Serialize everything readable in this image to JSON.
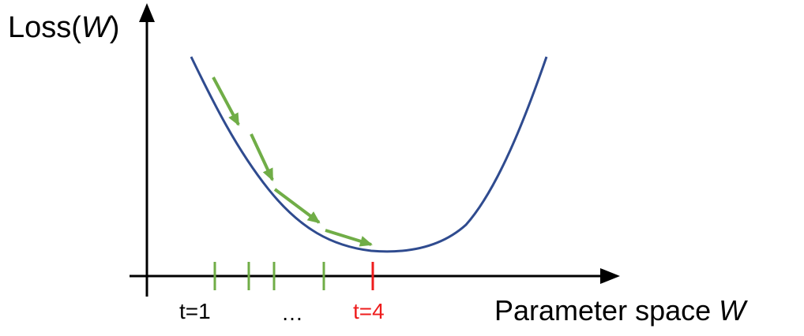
{
  "y_axis": {
    "label_prefix": "Loss(",
    "label_var": "W",
    "label_suffix": ")"
  },
  "x_axis": {
    "label_text": "Parameter space ",
    "label_var": "W"
  },
  "ticks": {
    "first_label": "t=1",
    "ellipsis": "…",
    "final_label": "t=4"
  },
  "colors": {
    "curve": "#2f4b8f",
    "step_arrows": "#70ad47",
    "step_ticks": "#70ad47",
    "final_tick": "#ee1c1c",
    "axes": "#000000"
  }
}
